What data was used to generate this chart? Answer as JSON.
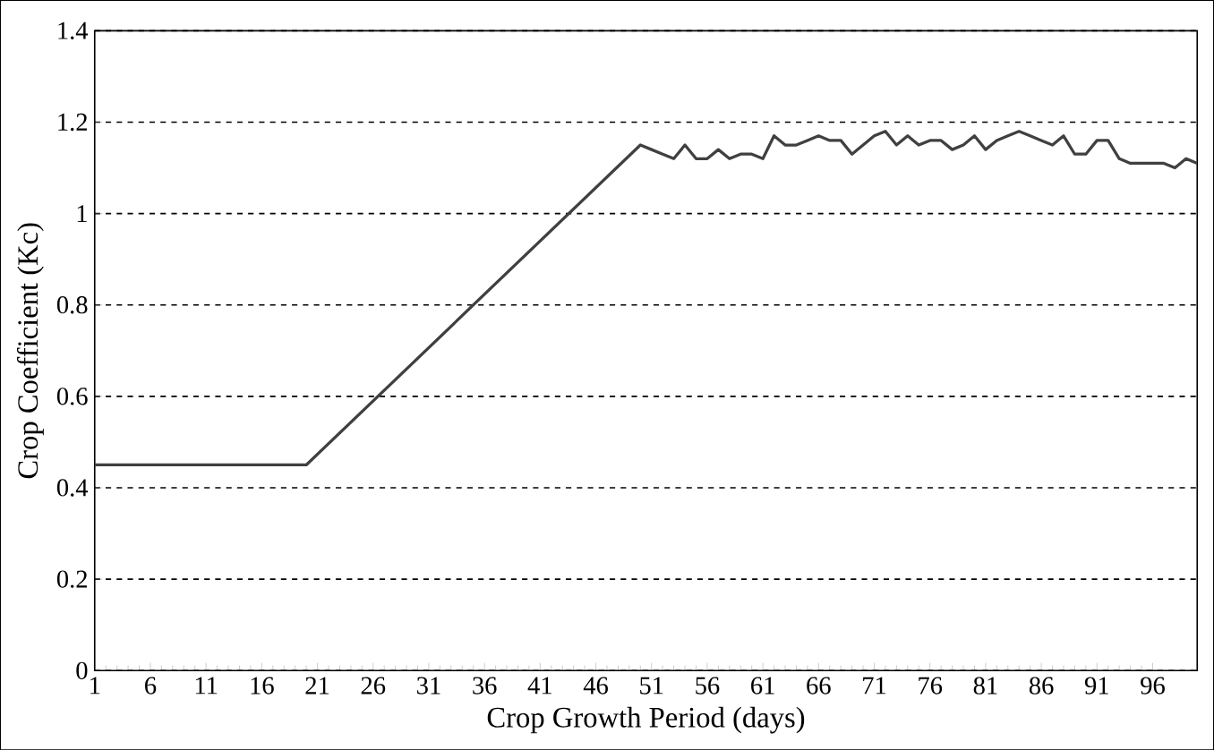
{
  "chart_data": {
    "type": "line",
    "xlabel": "Crop Growth Period (days)",
    "ylabel": "Crop Coefficient  (Kc)",
    "x": [
      1,
      20,
      50,
      51,
      52,
      53,
      54,
      55,
      56,
      57,
      58,
      59,
      60,
      61,
      62,
      63,
      64,
      65,
      66,
      67,
      68,
      69,
      70,
      71,
      72,
      73,
      74,
      75,
      76,
      77,
      78,
      79,
      80,
      81,
      82,
      83,
      84,
      85,
      86,
      87,
      88,
      89,
      90,
      91,
      92,
      93,
      94,
      95,
      96,
      97,
      98,
      99,
      100
    ],
    "series": [
      {
        "color": "#404040",
        "values": [
          0.45,
          0.45,
          1.15,
          1.14,
          1.13,
          1.12,
          1.15,
          1.12,
          1.12,
          1.14,
          1.12,
          1.13,
          1.13,
          1.12,
          1.17,
          1.15,
          1.15,
          1.16,
          1.17,
          1.16,
          1.16,
          1.13,
          1.15,
          1.17,
          1.18,
          1.15,
          1.17,
          1.15,
          1.16,
          1.16,
          1.14,
          1.15,
          1.17,
          1.14,
          1.16,
          1.17,
          1.18,
          1.17,
          1.16,
          1.15,
          1.17,
          1.13,
          1.13,
          1.16,
          1.16,
          1.12,
          1.11,
          1.11,
          1.11,
          1.11,
          1.1,
          1.12,
          1.11
        ]
      }
    ],
    "xlim": [
      1,
      100
    ],
    "xticks": [
      1,
      6,
      11,
      16,
      21,
      26,
      31,
      36,
      41,
      46,
      51,
      56,
      61,
      66,
      71,
      76,
      81,
      86,
      91,
      96
    ],
    "ylim": [
      0,
      1.4
    ],
    "yticks": [
      0,
      0.2,
      0.4,
      0.6,
      0.8,
      1,
      1.2,
      1.4
    ],
    "grid": "y",
    "marker": "none",
    "line_style": "solid"
  }
}
